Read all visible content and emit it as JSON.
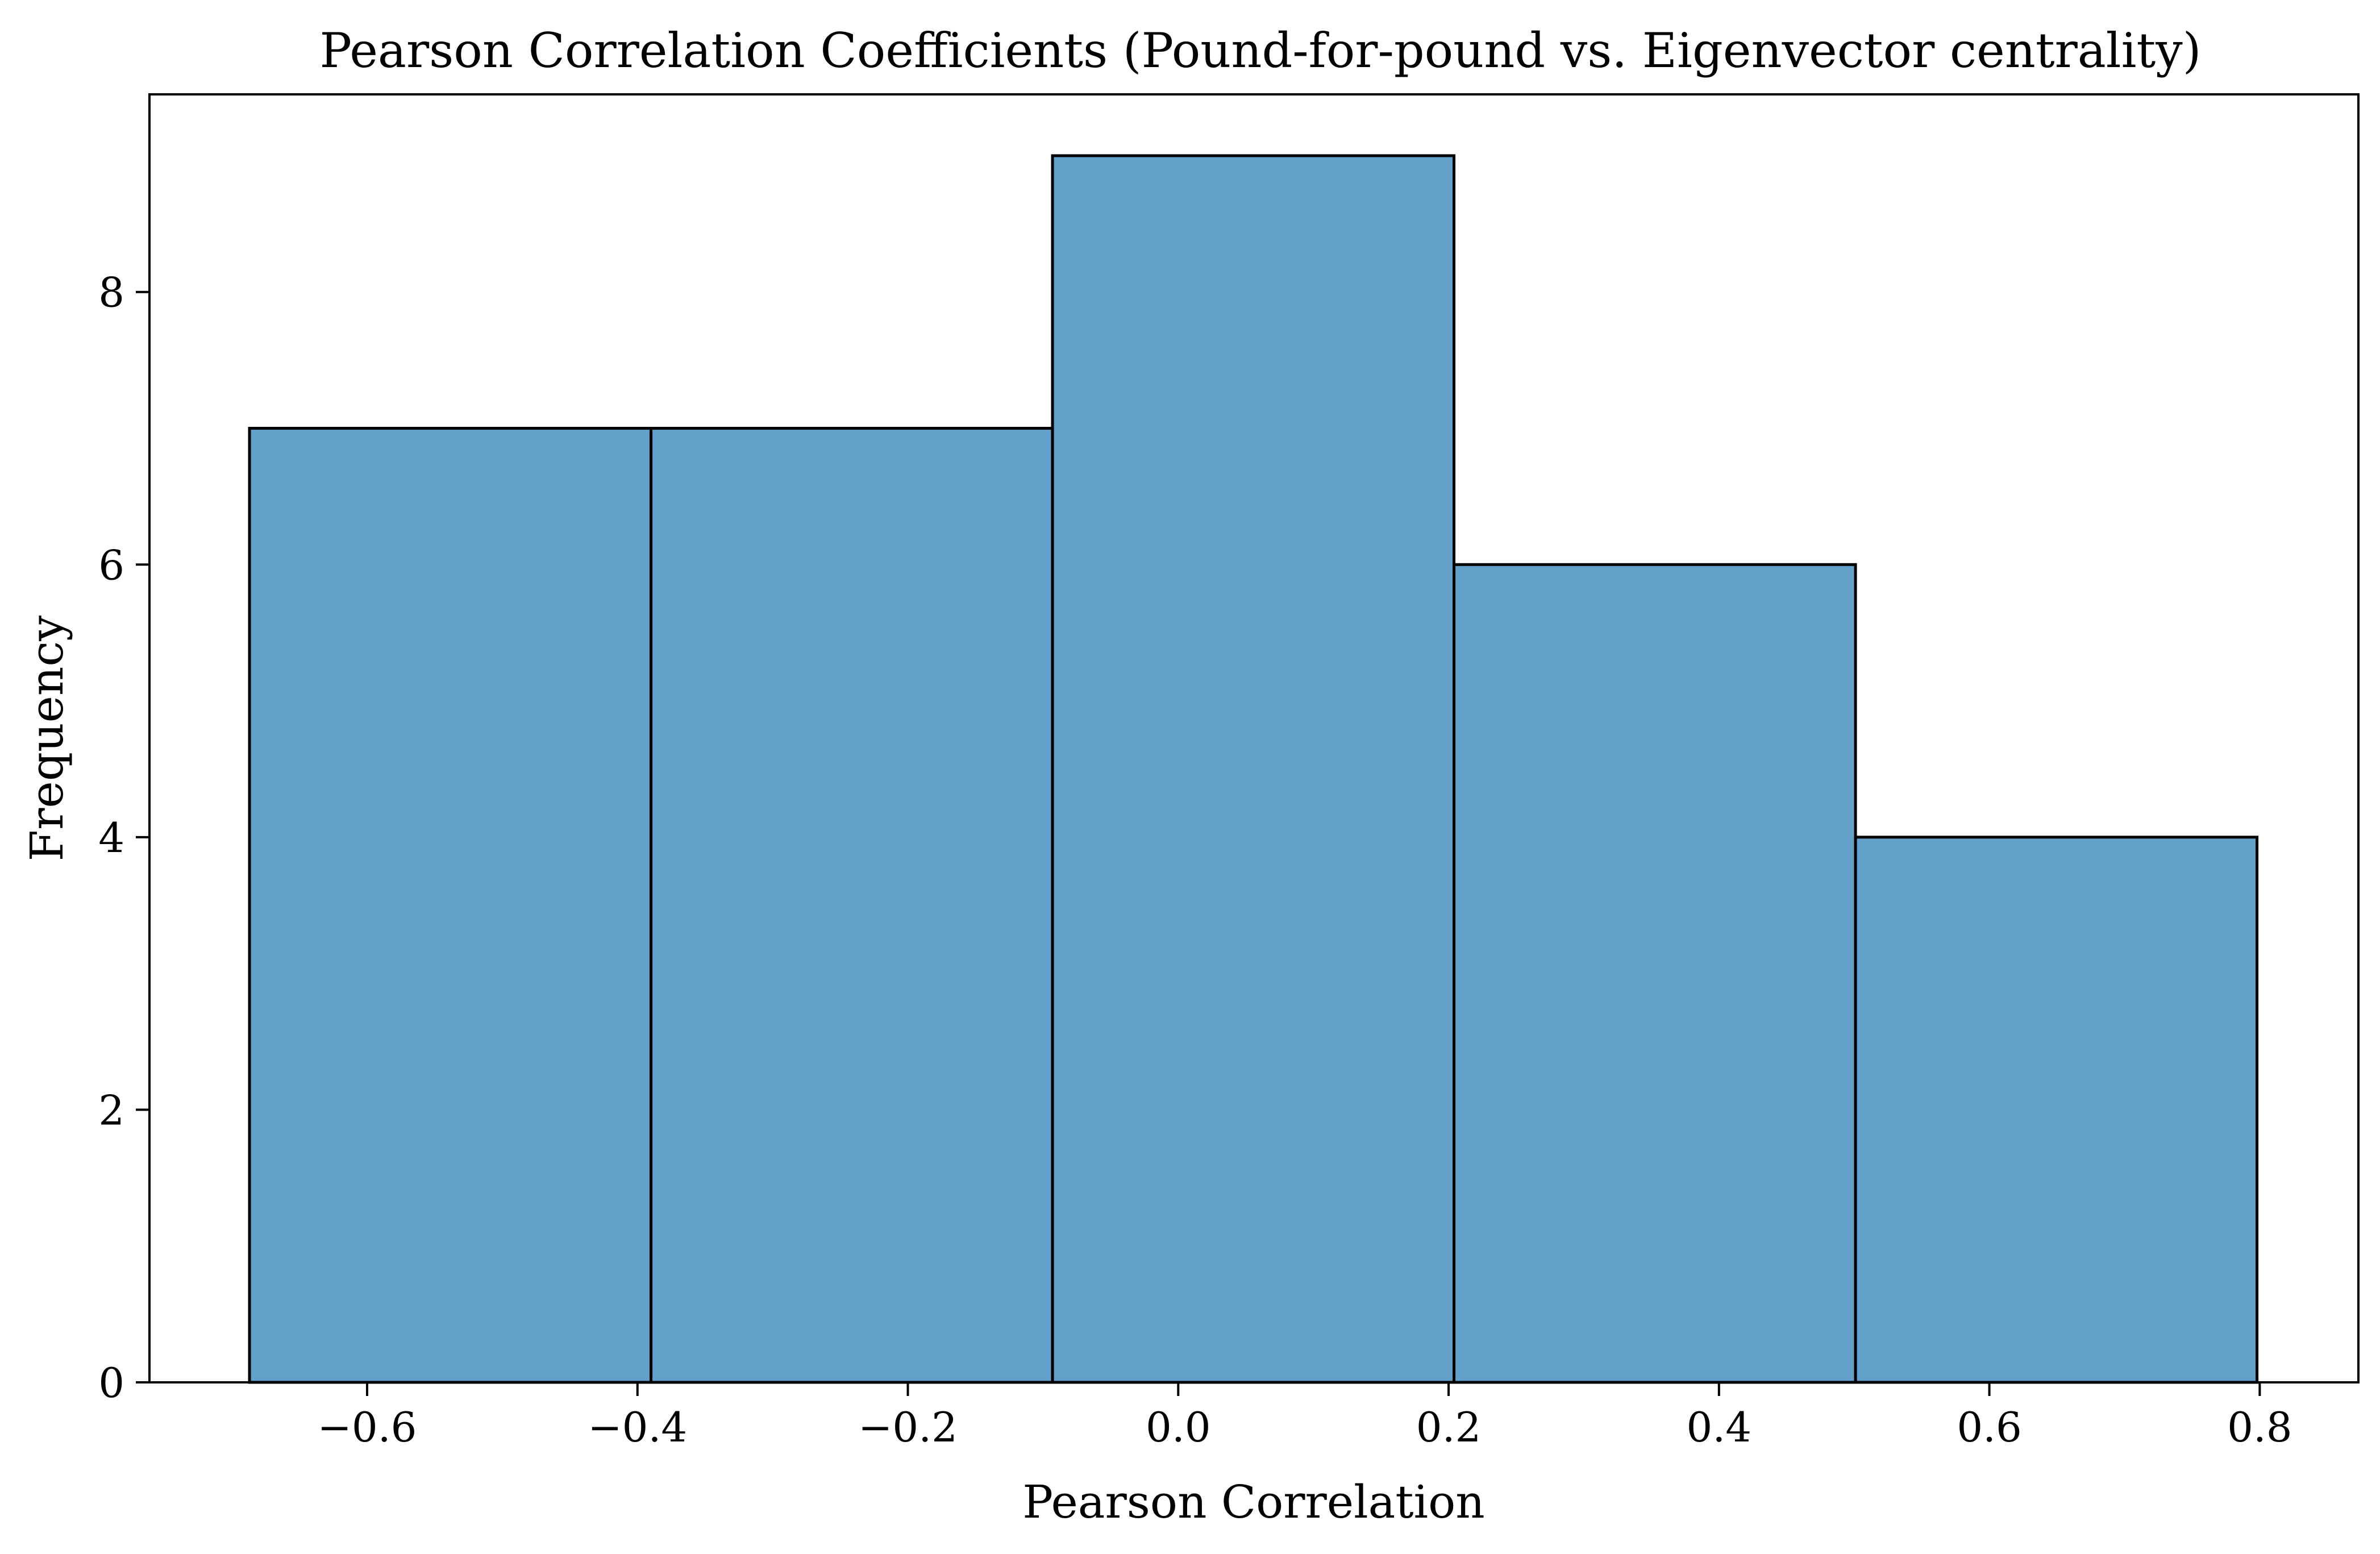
{
  "chart_data": {
    "type": "bar",
    "title": "Pearson Correlation Coefficients (Pound-for-pound vs. Eigenvector centrality)",
    "xlabel": "Pearson Correlation",
    "ylabel": "Frequency",
    "bins": [
      {
        "start": -0.687,
        "end": -0.39,
        "count": 7
      },
      {
        "start": -0.39,
        "end": -0.093,
        "count": 7
      },
      {
        "start": -0.093,
        "end": 0.204,
        "count": 9
      },
      {
        "start": 0.204,
        "end": 0.501,
        "count": 6
      },
      {
        "start": 0.501,
        "end": 0.798,
        "count": 4
      }
    ],
    "xlim": [
      -0.761,
      0.873
    ],
    "ylim": [
      0,
      9.45
    ],
    "xticks": [
      -0.6,
      -0.4,
      -0.2,
      0.0,
      0.2,
      0.4,
      0.6,
      0.8
    ],
    "xtick_labels": [
      "−0.6",
      "−0.4",
      "−0.2",
      "0.0",
      "0.2",
      "0.4",
      "0.6",
      "0.8"
    ],
    "yticks": [
      0,
      2,
      4,
      6,
      8
    ],
    "ytick_labels": [
      "0",
      "2",
      "4",
      "6",
      "8"
    ],
    "bar_color": "#1f77b4",
    "bar_alpha": 0.7,
    "edge_color": "#000000",
    "grid": false,
    "legend": "none"
  }
}
